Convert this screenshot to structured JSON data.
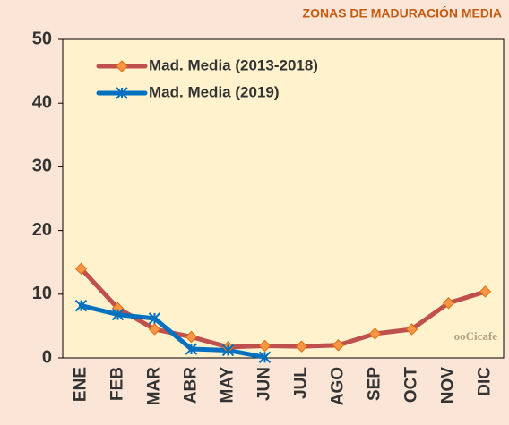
{
  "chart_data": {
    "type": "line",
    "title": "ZONAS DE MADURACIÓN MEDIA",
    "categories": [
      "ENE",
      "FEB",
      "MAR",
      "ABR",
      "MAY",
      "JUN",
      "JUL",
      "AGO",
      "SEP",
      "OCT",
      "NOV",
      "DIC"
    ],
    "series": [
      {
        "name": "Mad. Media (2013-2018)",
        "color": "#c0504d",
        "marker_color": "#f79646",
        "marker": "diamond",
        "values": [
          14,
          7.8,
          4.5,
          3.3,
          1.7,
          1.9,
          1.8,
          2.0,
          3.8,
          4.5,
          8.6,
          10.4
        ]
      },
      {
        "name": "Mad. Media (2019)",
        "color": "#0070c0",
        "marker_color": "#0070c0",
        "marker": "asterisk",
        "values": [
          8.2,
          6.8,
          6.2,
          1.4,
          1.2,
          0.1,
          null,
          null,
          null,
          null,
          null,
          null
        ]
      }
    ],
    "ylim": [
      0,
      50
    ],
    "yticks": [
      0,
      10,
      20,
      30,
      40,
      50
    ],
    "watermark": "ooCicafe"
  }
}
